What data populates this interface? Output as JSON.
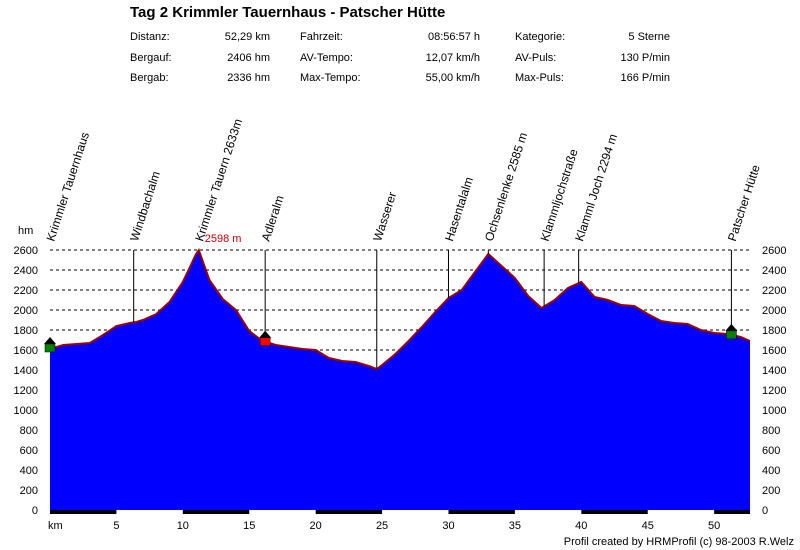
{
  "title": "Tag 2 Krimmler Tauernhaus - Patscher Hütte",
  "stats": [
    {
      "label": "Distanz:",
      "value": "52,29 km"
    },
    {
      "label": "Bergauf:",
      "value": "2406 hm"
    },
    {
      "label": "Bergab:",
      "value": "2336 hm"
    },
    {
      "label": "Fahrzeit:",
      "value": "08:56:57 h"
    },
    {
      "label": "AV-Tempo:",
      "value": "12,07 km/h"
    },
    {
      "label": "Max-Tempo:",
      "value": "55,00 km/h"
    },
    {
      "label": "Kategorie:",
      "value": "5 Sterne"
    },
    {
      "label": "AV-Puls:",
      "value": "130 P/min"
    },
    {
      "label": "Max-Puls:",
      "value": "166 P/min"
    }
  ],
  "credit": "Profil created by HRMProfil (c) 98-2003 R.Welz",
  "colors": {
    "fill": "#0000ff",
    "outline": "#990000",
    "max_label": "#cc0000",
    "start_marker": "#008000",
    "mid_marker": "#ff0000"
  },
  "chart_data": {
    "type": "area",
    "title": "Tag 2 Krimmler Tauernhaus - Patscher Hütte",
    "xlabel": "km",
    "ylabel": "hm",
    "xlim": [
      0,
      52.7
    ],
    "ylim": [
      0,
      2600
    ],
    "xticks": [
      5,
      10,
      15,
      20,
      25,
      30,
      35,
      40,
      45,
      50
    ],
    "yticks": [
      0,
      200,
      400,
      600,
      800,
      1000,
      1200,
      1400,
      1600,
      1800,
      2000,
      2200,
      2400,
      2600
    ],
    "grid": true,
    "x": [
      0,
      0.5,
      1,
      2,
      3,
      4,
      5,
      6,
      6.5,
      7,
      8,
      9,
      10,
      10.5,
      11,
      11.2,
      12,
      13,
      14,
      15,
      16,
      17,
      18,
      19,
      20,
      21,
      22,
      23,
      24,
      24.6,
      25,
      26,
      27,
      28,
      29,
      30,
      31,
      32,
      33,
      34,
      35,
      36,
      37,
      38,
      39,
      40,
      41,
      42,
      43,
      44,
      45,
      46,
      47,
      48,
      49,
      50,
      51,
      52,
      52.7
    ],
    "y": [
      1620,
      1630,
      1650,
      1660,
      1670,
      1750,
      1840,
      1870,
      1880,
      1900,
      1960,
      2080,
      2280,
      2420,
      2560,
      2598,
      2300,
      2110,
      2000,
      1790,
      1690,
      1650,
      1630,
      1610,
      1600,
      1520,
      1490,
      1480,
      1440,
      1410,
      1450,
      1560,
      1690,
      1830,
      1980,
      2120,
      2200,
      2380,
      2560,
      2440,
      2320,
      2140,
      2020,
      2100,
      2220,
      2280,
      2130,
      2100,
      2050,
      2040,
      1960,
      1890,
      1870,
      1860,
      1800,
      1770,
      1760,
      1730,
      1690
    ],
    "max_label": "2598 m",
    "waypoints": [
      {
        "name": "Krimmler Tauernhaus",
        "km": 0
      },
      {
        "name": "Windbachalm",
        "km": 6.3
      },
      {
        "name": "Krimmler Tauern 2633m",
        "km": 11.2
      },
      {
        "name": "Adleralm",
        "km": 16.2
      },
      {
        "name": "Wasserer",
        "km": 24.6
      },
      {
        "name": "Hasentalalm",
        "km": 30.0
      },
      {
        "name": "Ochsenlenke 2585 m",
        "km": 33.0
      },
      {
        "name": "Klammljochstraße",
        "km": 37.2
      },
      {
        "name": "Klamml Joch 2294 m",
        "km": 39.8
      },
      {
        "name": "Patscher Hütte",
        "km": 51.3
      }
    ],
    "markers": [
      {
        "km": 0,
        "color": "start"
      },
      {
        "km": 16.2,
        "color": "mid"
      },
      {
        "km": 51.3,
        "color": "start"
      }
    ]
  }
}
